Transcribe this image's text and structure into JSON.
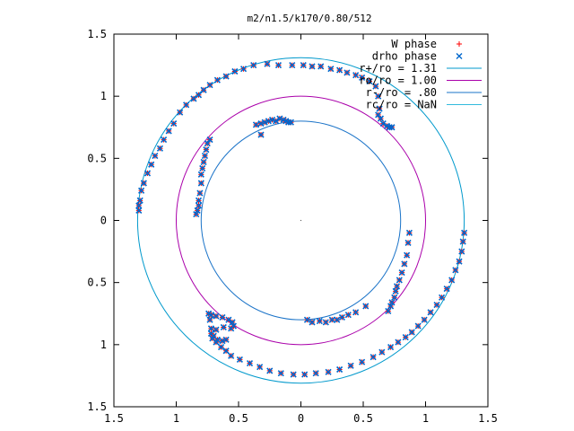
{
  "chart_data": {
    "type": "scatter",
    "title": "m2/n1.5/k170/0.80/512",
    "xlabel": "",
    "ylabel": "",
    "xlim": [
      -1.5,
      1.5
    ],
    "ylim": [
      -1.5,
      1.5
    ],
    "x_ticks": [
      -1.5,
      -1,
      -0.5,
      0,
      0.5,
      1,
      1.5
    ],
    "y_ticks": [
      -1.5,
      -1,
      -0.5,
      0,
      0.5,
      1,
      1.5
    ],
    "x_tick_labels": [
      "1.5",
      "1",
      "0.5",
      "0",
      "0.5",
      "1",
      "1.5"
    ],
    "y_tick_labels": [
      "1.5",
      "1",
      "0.5",
      "0",
      "0.5",
      "1",
      "1.5"
    ],
    "grid": false,
    "legend_position": "top-right",
    "legend": [
      {
        "label": "W phase",
        "marker": "plus",
        "color": "#ff0000"
      },
      {
        "label": "drho phase",
        "marker": "x",
        "color": "#0066cc"
      },
      {
        "label": "r+/ro = 1.31",
        "marker": "line",
        "color": "#0099cc"
      },
      {
        "label": "ro/ro = 1.00",
        "marker": "line",
        "color": "#aa00aa"
      },
      {
        "label": "r-/ro = .80",
        "marker": "line",
        "color": "#1a73c8"
      },
      {
        "label": "rc/ro = NaN",
        "marker": "line",
        "color": "#33bbdd"
      }
    ],
    "circles": [
      {
        "name": "r+/ro = 1.31",
        "radius": 1.31,
        "color": "#0099cc"
      },
      {
        "name": "ro/ro = 1.00",
        "radius": 1.0,
        "color": "#aa00aa"
      },
      {
        "name": "r-/ro = .80",
        "radius": 0.8,
        "color": "#1a73c8"
      }
    ],
    "series": [
      {
        "name": "W phase",
        "color": "#ff0000",
        "points": [
          [
            -1.3,
            0.08
          ],
          [
            -1.3,
            0.12
          ],
          [
            -1.29,
            0.16
          ],
          [
            -1.28,
            0.24
          ],
          [
            -1.26,
            0.3
          ],
          [
            -1.23,
            0.38
          ],
          [
            -1.2,
            0.45
          ],
          [
            -1.17,
            0.52
          ],
          [
            -1.13,
            0.58
          ],
          [
            -1.1,
            0.65
          ],
          [
            -1.06,
            0.72
          ],
          [
            -1.02,
            0.78
          ],
          [
            -0.97,
            0.87
          ],
          [
            -0.92,
            0.93
          ],
          [
            -0.86,
            0.98
          ],
          [
            -0.82,
            1.01
          ],
          [
            -0.78,
            1.05
          ],
          [
            -0.73,
            1.09
          ],
          [
            -0.67,
            1.13
          ],
          [
            -0.6,
            1.16
          ],
          [
            -0.53,
            1.2
          ],
          [
            -0.46,
            1.22
          ],
          [
            -0.38,
            1.25
          ],
          [
            -0.27,
            1.26
          ],
          [
            -0.18,
            1.25
          ],
          [
            -0.07,
            1.25
          ],
          [
            0.02,
            1.25
          ],
          [
            0.09,
            1.24
          ],
          [
            0.16,
            1.24
          ],
          [
            0.24,
            1.22
          ],
          [
            0.31,
            1.21
          ],
          [
            0.37,
            1.19
          ],
          [
            0.44,
            1.17
          ],
          [
            0.49,
            1.15
          ],
          [
            0.55,
            1.12
          ],
          [
            0.6,
            1.08
          ],
          [
            0.62,
            1.0
          ],
          [
            0.63,
            0.9
          ],
          [
            0.62,
            0.85
          ],
          [
            0.64,
            0.82
          ],
          [
            0.66,
            0.78
          ],
          [
            0.69,
            0.76
          ],
          [
            0.71,
            0.75
          ],
          [
            0.73,
            0.75
          ],
          [
            -0.32,
            0.69
          ],
          [
            -0.36,
            0.77
          ],
          [
            -0.32,
            0.78
          ],
          [
            -0.29,
            0.79
          ],
          [
            -0.26,
            0.8
          ],
          [
            -0.23,
            0.81
          ],
          [
            -0.2,
            0.8
          ],
          [
            -0.17,
            0.82
          ],
          [
            -0.14,
            0.81
          ],
          [
            -0.12,
            0.8
          ],
          [
            -0.1,
            0.79
          ],
          [
            -0.08,
            0.79
          ],
          [
            -0.73,
            0.65
          ],
          [
            -0.75,
            0.62
          ],
          [
            -0.76,
            0.57
          ],
          [
            -0.77,
            0.52
          ],
          [
            -0.78,
            0.47
          ],
          [
            -0.79,
            0.42
          ],
          [
            -0.8,
            0.37
          ],
          [
            -0.8,
            0.3
          ],
          [
            -0.81,
            0.22
          ],
          [
            -0.82,
            0.16
          ],
          [
            -0.82,
            0.12
          ],
          [
            -0.83,
            0.08
          ],
          [
            -0.84,
            0.05
          ],
          [
            0.87,
            -0.1
          ],
          [
            0.86,
            -0.18
          ],
          [
            0.85,
            -0.28
          ],
          [
            0.83,
            -0.35
          ],
          [
            0.81,
            -0.42
          ],
          [
            0.79,
            -0.48
          ],
          [
            0.77,
            -0.53
          ],
          [
            0.76,
            -0.57
          ],
          [
            0.75,
            -0.62
          ],
          [
            0.73,
            -0.66
          ],
          [
            0.72,
            -0.69
          ],
          [
            0.7,
            -0.73
          ],
          [
            0.52,
            -0.69
          ],
          [
            0.44,
            -0.74
          ],
          [
            0.38,
            -0.76
          ],
          [
            0.33,
            -0.78
          ],
          [
            0.29,
            -0.8
          ],
          [
            0.25,
            -0.8
          ],
          [
            0.2,
            -0.82
          ],
          [
            0.15,
            -0.81
          ],
          [
            0.09,
            -0.82
          ],
          [
            0.05,
            -0.8
          ],
          [
            1.31,
            -0.1
          ],
          [
            1.3,
            -0.17
          ],
          [
            1.29,
            -0.25
          ],
          [
            1.27,
            -0.33
          ],
          [
            1.24,
            -0.4
          ],
          [
            1.21,
            -0.48
          ],
          [
            1.17,
            -0.55
          ],
          [
            1.13,
            -0.62
          ],
          [
            1.09,
            -0.68
          ],
          [
            1.04,
            -0.74
          ],
          [
            0.99,
            -0.8
          ],
          [
            0.94,
            -0.85
          ],
          [
            0.89,
            -0.9
          ],
          [
            0.84,
            -0.94
          ],
          [
            0.78,
            -0.98
          ],
          [
            0.72,
            -1.02
          ],
          [
            0.65,
            -1.06
          ],
          [
            0.58,
            -1.1
          ],
          [
            0.49,
            -1.14
          ],
          [
            0.4,
            -1.17
          ],
          [
            0.31,
            -1.2
          ],
          [
            0.22,
            -1.22
          ],
          [
            0.12,
            -1.23
          ],
          [
            0.03,
            -1.24
          ],
          [
            -0.06,
            -1.24
          ],
          [
            -0.16,
            -1.23
          ],
          [
            -0.25,
            -1.21
          ],
          [
            -0.33,
            -1.18
          ],
          [
            -0.41,
            -1.15
          ],
          [
            -0.49,
            -1.12
          ],
          [
            -0.56,
            -1.09
          ],
          [
            -0.6,
            -1.05
          ],
          [
            -0.64,
            -1.02
          ],
          [
            -0.68,
            -0.98
          ],
          [
            -0.7,
            -0.93
          ],
          [
            -0.72,
            -0.87
          ],
          [
            -0.73,
            -0.8
          ],
          [
            -0.74,
            -0.75
          ],
          [
            -0.72,
            -0.76
          ],
          [
            -0.68,
            -0.77
          ],
          [
            -0.63,
            -0.78
          ],
          [
            -0.58,
            -0.8
          ],
          [
            -0.55,
            -0.82
          ],
          [
            -0.54,
            -0.85
          ],
          [
            -0.56,
            -0.87
          ],
          [
            -0.62,
            -0.86
          ],
          [
            -0.68,
            -0.88
          ],
          [
            -0.72,
            -0.91
          ],
          [
            -0.71,
            -0.95
          ],
          [
            -0.67,
            -0.96
          ],
          [
            -0.63,
            -0.97
          ],
          [
            -0.6,
            -0.96
          ]
        ]
      },
      {
        "name": "drho phase",
        "color": "#0066cc",
        "points": [
          [
            -1.3,
            0.08
          ],
          [
            -1.3,
            0.12
          ],
          [
            -1.29,
            0.16
          ],
          [
            -1.28,
            0.24
          ],
          [
            -1.26,
            0.3
          ],
          [
            -1.23,
            0.38
          ],
          [
            -1.2,
            0.45
          ],
          [
            -1.17,
            0.52
          ],
          [
            -1.13,
            0.58
          ],
          [
            -1.1,
            0.65
          ],
          [
            -1.06,
            0.72
          ],
          [
            -1.02,
            0.78
          ],
          [
            -0.97,
            0.87
          ],
          [
            -0.92,
            0.93
          ],
          [
            -0.86,
            0.98
          ],
          [
            -0.82,
            1.01
          ],
          [
            -0.78,
            1.05
          ],
          [
            -0.73,
            1.09
          ],
          [
            -0.67,
            1.13
          ],
          [
            -0.6,
            1.16
          ],
          [
            -0.53,
            1.2
          ],
          [
            -0.46,
            1.22
          ],
          [
            -0.38,
            1.25
          ],
          [
            -0.27,
            1.26
          ],
          [
            -0.18,
            1.25
          ],
          [
            -0.07,
            1.25
          ],
          [
            0.02,
            1.25
          ],
          [
            0.09,
            1.24
          ],
          [
            0.16,
            1.24
          ],
          [
            0.24,
            1.22
          ],
          [
            0.31,
            1.21
          ],
          [
            0.37,
            1.19
          ],
          [
            0.44,
            1.17
          ],
          [
            0.49,
            1.15
          ],
          [
            0.55,
            1.12
          ],
          [
            0.6,
            1.08
          ],
          [
            0.62,
            1.0
          ],
          [
            0.63,
            0.9
          ],
          [
            0.62,
            0.85
          ],
          [
            0.64,
            0.82
          ],
          [
            0.66,
            0.78
          ],
          [
            0.69,
            0.76
          ],
          [
            0.71,
            0.75
          ],
          [
            0.73,
            0.75
          ],
          [
            -0.32,
            0.69
          ],
          [
            -0.36,
            0.77
          ],
          [
            -0.32,
            0.78
          ],
          [
            -0.29,
            0.79
          ],
          [
            -0.26,
            0.8
          ],
          [
            -0.23,
            0.81
          ],
          [
            -0.2,
            0.8
          ],
          [
            -0.17,
            0.82
          ],
          [
            -0.14,
            0.81
          ],
          [
            -0.12,
            0.8
          ],
          [
            -0.1,
            0.79
          ],
          [
            -0.08,
            0.79
          ],
          [
            -0.73,
            0.65
          ],
          [
            -0.75,
            0.62
          ],
          [
            -0.76,
            0.57
          ],
          [
            -0.77,
            0.52
          ],
          [
            -0.78,
            0.47
          ],
          [
            -0.79,
            0.42
          ],
          [
            -0.8,
            0.37
          ],
          [
            -0.8,
            0.3
          ],
          [
            -0.81,
            0.22
          ],
          [
            -0.82,
            0.16
          ],
          [
            -0.82,
            0.12
          ],
          [
            -0.83,
            0.08
          ],
          [
            -0.84,
            0.05
          ],
          [
            0.87,
            -0.1
          ],
          [
            0.86,
            -0.18
          ],
          [
            0.85,
            -0.28
          ],
          [
            0.83,
            -0.35
          ],
          [
            0.81,
            -0.42
          ],
          [
            0.79,
            -0.48
          ],
          [
            0.77,
            -0.53
          ],
          [
            0.76,
            -0.57
          ],
          [
            0.75,
            -0.62
          ],
          [
            0.73,
            -0.66
          ],
          [
            0.72,
            -0.69
          ],
          [
            0.7,
            -0.73
          ],
          [
            0.52,
            -0.69
          ],
          [
            0.44,
            -0.74
          ],
          [
            0.38,
            -0.76
          ],
          [
            0.33,
            -0.78
          ],
          [
            0.29,
            -0.8
          ],
          [
            0.25,
            -0.8
          ],
          [
            0.2,
            -0.82
          ],
          [
            0.15,
            -0.81
          ],
          [
            0.09,
            -0.82
          ],
          [
            0.05,
            -0.8
          ],
          [
            1.31,
            -0.1
          ],
          [
            1.3,
            -0.17
          ],
          [
            1.29,
            -0.25
          ],
          [
            1.27,
            -0.33
          ],
          [
            1.24,
            -0.4
          ],
          [
            1.21,
            -0.48
          ],
          [
            1.17,
            -0.55
          ],
          [
            1.13,
            -0.62
          ],
          [
            1.09,
            -0.68
          ],
          [
            1.04,
            -0.74
          ],
          [
            0.99,
            -0.8
          ],
          [
            0.94,
            -0.85
          ],
          [
            0.89,
            -0.9
          ],
          [
            0.84,
            -0.94
          ],
          [
            0.78,
            -0.98
          ],
          [
            0.72,
            -1.02
          ],
          [
            0.65,
            -1.06
          ],
          [
            0.58,
            -1.1
          ],
          [
            0.49,
            -1.14
          ],
          [
            0.4,
            -1.17
          ],
          [
            0.31,
            -1.2
          ],
          [
            0.22,
            -1.22
          ],
          [
            0.12,
            -1.23
          ],
          [
            0.03,
            -1.24
          ],
          [
            -0.06,
            -1.24
          ],
          [
            -0.16,
            -1.23
          ],
          [
            -0.25,
            -1.21
          ],
          [
            -0.33,
            -1.18
          ],
          [
            -0.41,
            -1.15
          ],
          [
            -0.49,
            -1.12
          ],
          [
            -0.56,
            -1.09
          ],
          [
            -0.6,
            -1.05
          ],
          [
            -0.64,
            -1.02
          ],
          [
            -0.68,
            -0.98
          ],
          [
            -0.7,
            -0.93
          ],
          [
            -0.72,
            -0.87
          ],
          [
            -0.73,
            -0.8
          ],
          [
            -0.74,
            -0.75
          ],
          [
            -0.72,
            -0.76
          ],
          [
            -0.68,
            -0.77
          ],
          [
            -0.63,
            -0.78
          ],
          [
            -0.58,
            -0.8
          ],
          [
            -0.55,
            -0.82
          ],
          [
            -0.54,
            -0.85
          ],
          [
            -0.56,
            -0.87
          ],
          [
            -0.62,
            -0.86
          ],
          [
            -0.68,
            -0.88
          ],
          [
            -0.72,
            -0.91
          ],
          [
            -0.71,
            -0.95
          ],
          [
            -0.67,
            -0.96
          ],
          [
            -0.63,
            -0.97
          ],
          [
            -0.6,
            -0.96
          ]
        ]
      }
    ]
  }
}
